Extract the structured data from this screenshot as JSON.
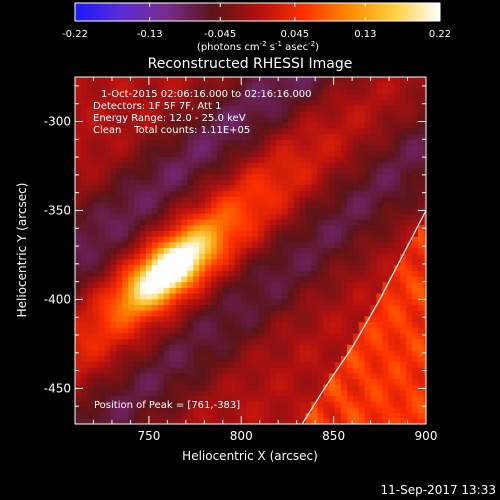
{
  "colorbar": {
    "ticks": [
      "-0.22",
      "-0.13",
      "-0.045",
      "0.045",
      "0.13",
      "0.22"
    ],
    "units_main": "(photons cm",
    "units_sup1": "-2",
    "units_mid1": " s",
    "units_sup2": "-1",
    "units_mid2": " asec",
    "units_sup3": "-2",
    "units_end": ")",
    "colors": [
      "#1a1aff",
      "#5a2bd6",
      "#7a2c8c",
      "#5a1418",
      "#b01010",
      "#ff3000",
      "#ff8a00",
      "#ffd040",
      "#ffffff"
    ]
  },
  "chart_data": {
    "type": "heatmap",
    "title": "Reconstructed RHESSI Image",
    "xlabel": "Heliocentric X (arcsec)",
    "ylabel": "Heliocentric Y (arcsec)",
    "xlim": [
      710,
      900
    ],
    "ylim": [
      -470,
      -275
    ],
    "xticks": [
      "750",
      "800",
      "850",
      "900"
    ],
    "xtick_values": [
      750,
      800,
      850,
      900
    ],
    "yticks": [
      "-300",
      "-350",
      "-400",
      "-450"
    ],
    "ytick_values": [
      -300,
      -350,
      -400,
      -450
    ],
    "value_range": [
      -0.22,
      0.22
    ],
    "annotations": {
      "time": "1-Oct-2015 02:06:16.000 to 02:16:16.000",
      "detectors": "Detectors: 1F 5F 7F, Att 1",
      "energy": "Energy Range: 12.0 - 25.0 keV",
      "clean": "Clean    Total counts: 1.11E+05",
      "peak": "Position of Peak = [761,-383]"
    },
    "peak_position": [
      761,
      -383
    ],
    "limb_curve_x": [
      833,
      845,
      860,
      875,
      890,
      900
    ],
    "limb_curve_y": [
      -470,
      -450,
      -427,
      -400,
      -370,
      -350
    ]
  },
  "footer": {
    "timestamp": "11-Sep-2017 13:33"
  }
}
